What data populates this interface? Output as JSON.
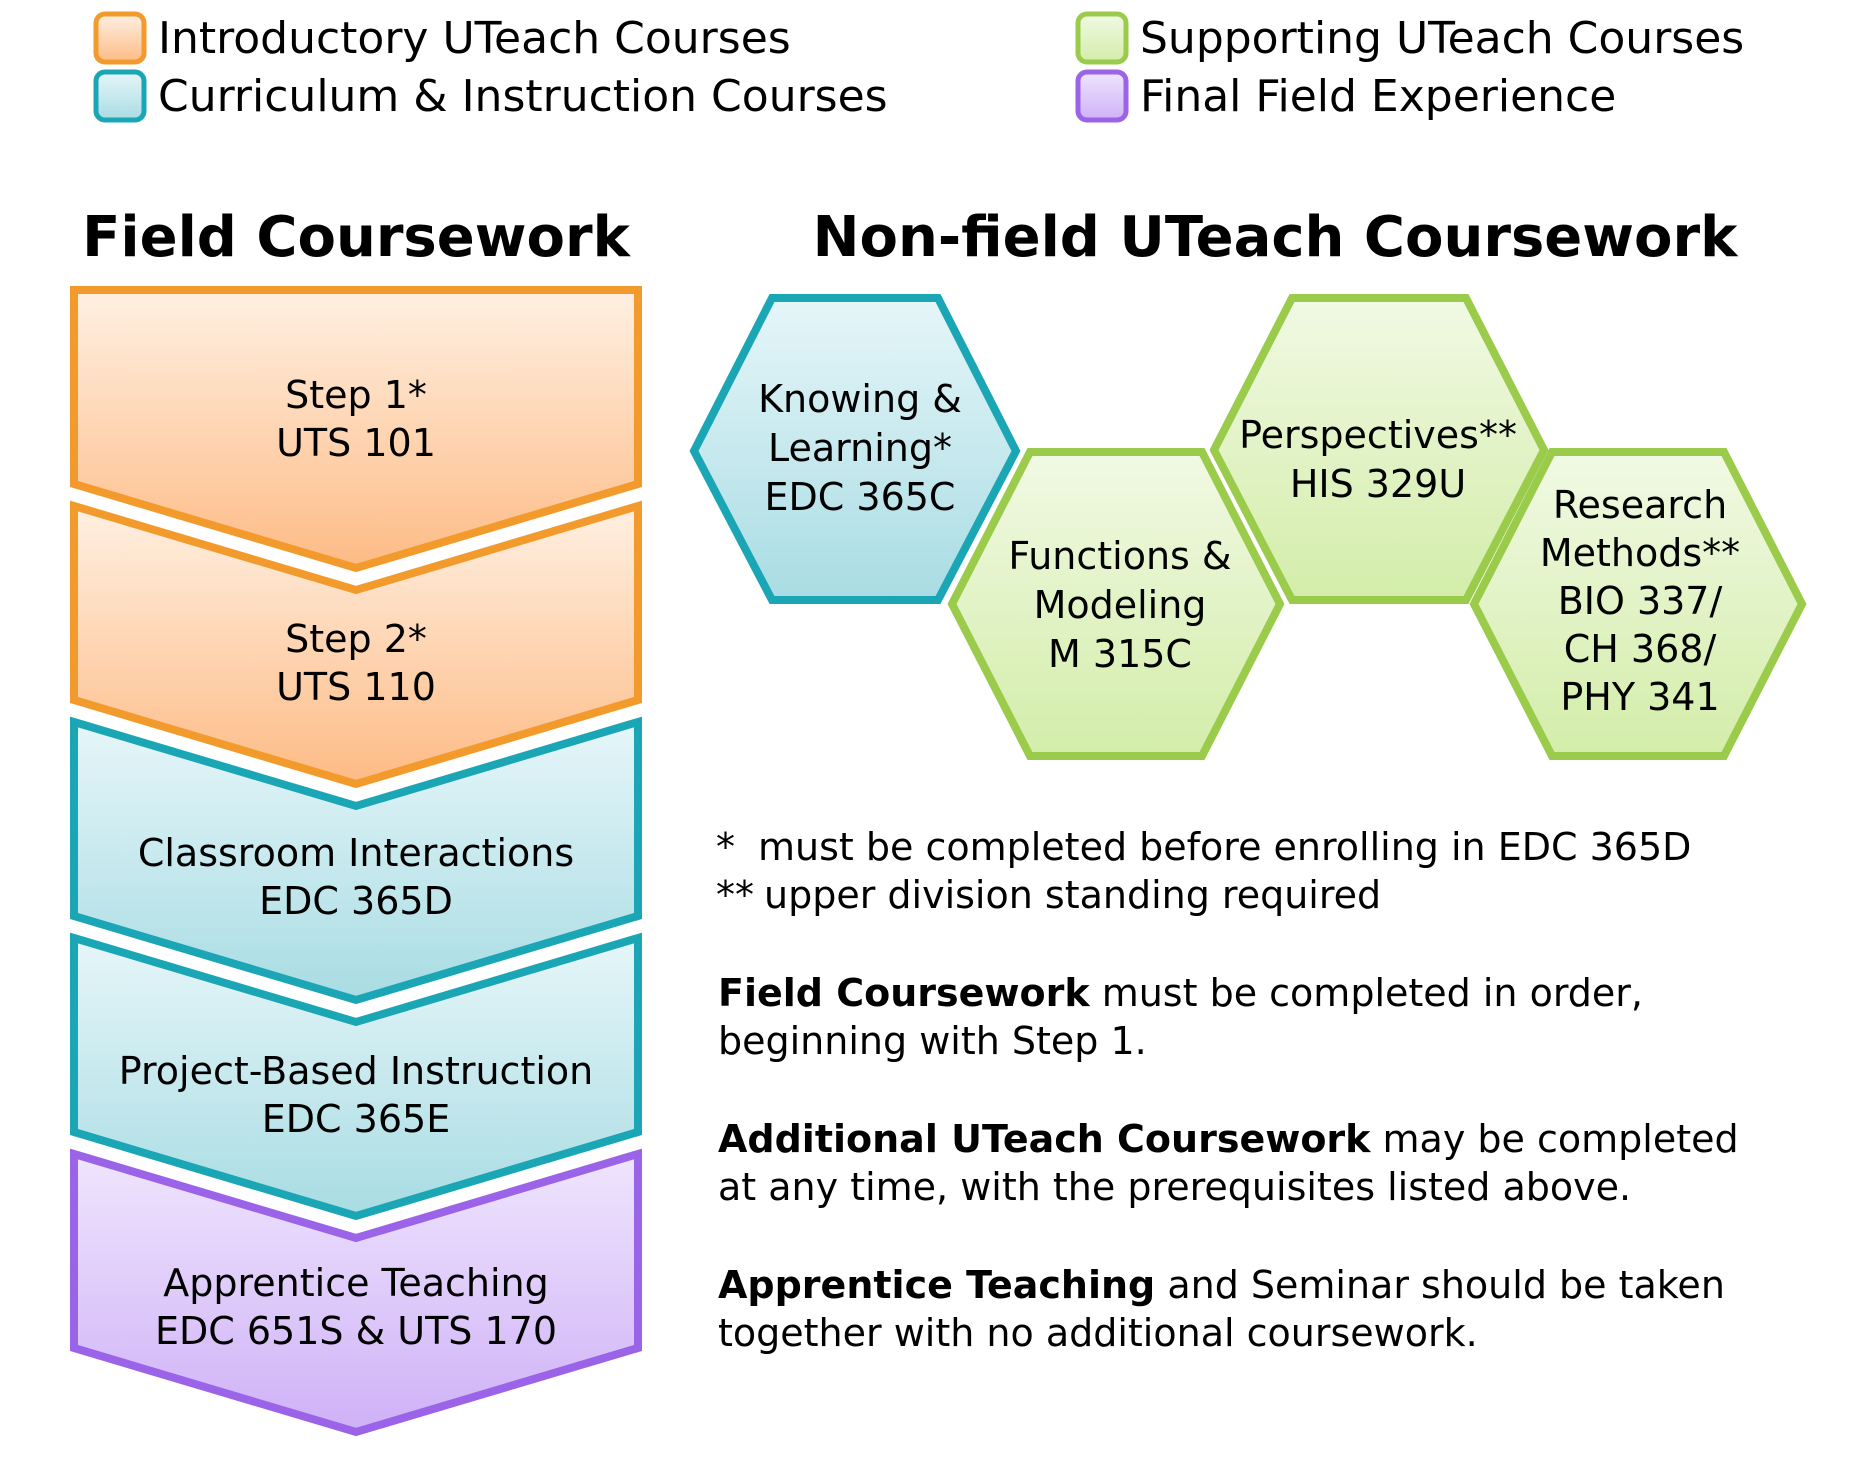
{
  "legend": [
    {
      "label": "Introductory UTeach Courses",
      "color": "orange"
    },
    {
      "label": "Curriculum & Instruction Courses",
      "color": "teal"
    },
    {
      "label": "Supporting UTeach Courses",
      "color": "green"
    },
    {
      "label": "Final Field Experience",
      "color": "purple"
    }
  ],
  "colors": {
    "orange": {
      "stroke": "#f39a2c",
      "top": "#fff0e2",
      "bottom": "#fdbb85"
    },
    "teal": {
      "stroke": "#1aa6b4",
      "top": "#e6f6f9",
      "bottom": "#a8dce3"
    },
    "green": {
      "stroke": "#9bcb4b",
      "top": "#f1f9e4",
      "bottom": "#d3eda9"
    },
    "purple": {
      "stroke": "#9a63e8",
      "top": "#efe5fd",
      "bottom": "#cfb1f7"
    }
  },
  "field_heading": "Field Coursework",
  "nonfield_heading": "Non-field UTeach Coursework",
  "field_steps": [
    {
      "line1": "Step 1*",
      "line2": "UTS 101",
      "color": "orange"
    },
    {
      "line1": "Step 2*",
      "line2": "UTS 110",
      "color": "orange"
    },
    {
      "line1": "Classroom Interactions",
      "line2": "EDC 365D",
      "color": "teal"
    },
    {
      "line1": "Project-Based Instruction",
      "line2": "EDC 365E",
      "color": "teal"
    },
    {
      "line1": "Apprentice Teaching",
      "line2": "EDC 651S & UTS 170",
      "color": "purple"
    }
  ],
  "hexagons": [
    {
      "lines": [
        "Knowing &",
        "Learning*",
        "EDC 365C"
      ],
      "color": "teal"
    },
    {
      "lines": [
        "Functions &",
        "Modeling",
        "M 315C"
      ],
      "color": "green"
    },
    {
      "lines": [
        "Perspectives**",
        "HIS 329U"
      ],
      "color": "green"
    },
    {
      "lines": [
        "Research",
        "Methods**",
        "BIO 337/",
        "CH 368/",
        "PHY 341"
      ],
      "color": "green"
    }
  ],
  "notes": [
    {
      "mark": "*",
      "text": "must be completed before enrolling in EDC 365D"
    },
    {
      "mark": "**",
      "text": "upper division standing required"
    }
  ],
  "paragraphs": [
    {
      "bold": "Field Coursework",
      "rest1": " must be completed in order,",
      "line2": "beginning with Step 1."
    },
    {
      "bold": "Additional UTeach Coursework",
      "rest1": " may be completed",
      "line2": "at any time, with the prerequisites listed above."
    },
    {
      "bold": "Apprentice Teaching",
      "rest1": " and Seminar should be taken",
      "line2": "together with no additional coursework."
    }
  ]
}
